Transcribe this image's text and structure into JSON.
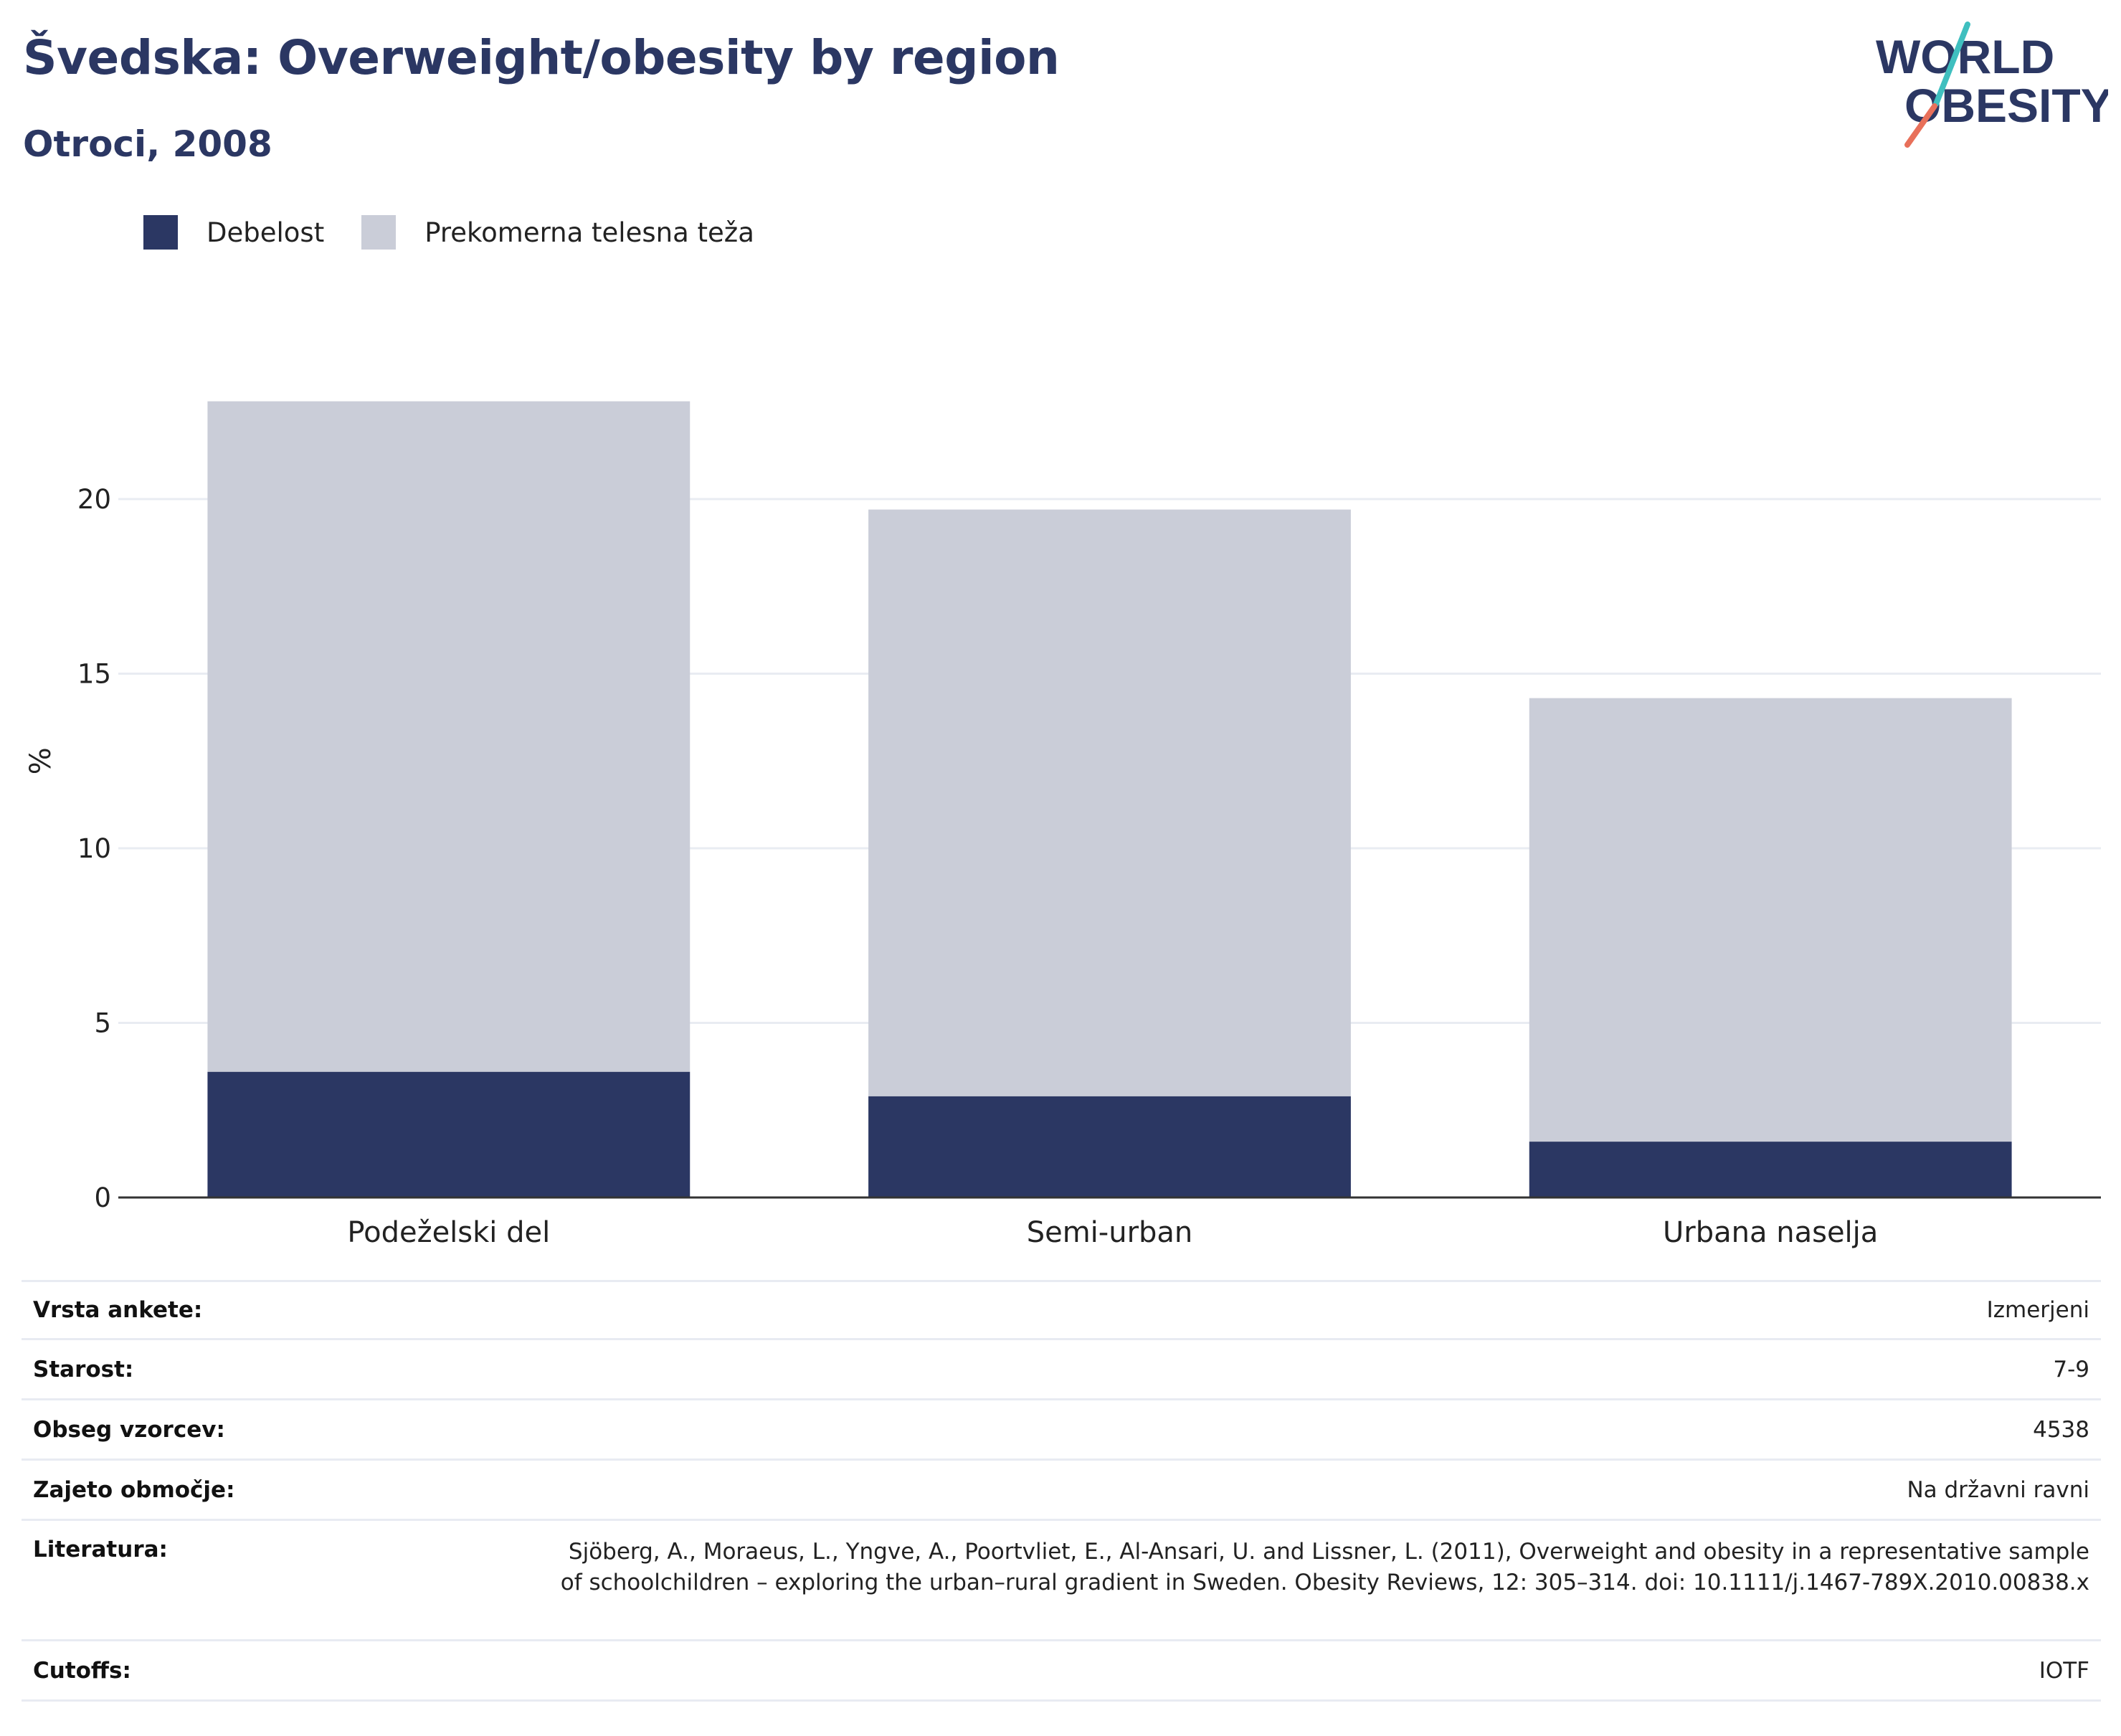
{
  "title": "Švedska: Overweight/obesity by region",
  "subtitle": "Otroci, 2008",
  "logo": {
    "line1": "WORLD",
    "line2": "OBESITY",
    "accent_colors": [
      "#3fbfbf",
      "#e8705a"
    ]
  },
  "colors": {
    "obesity": "#2b3763",
    "overweight": "#cacdd8",
    "grid": "#e9ecf2",
    "axis": "#333333",
    "title": "#2b3763"
  },
  "legend": [
    {
      "label": "Debelost",
      "color": "#2b3763"
    },
    {
      "label": "Prekomerna telesna teža",
      "color": "#cacdd8"
    }
  ],
  "chart_data": {
    "type": "bar",
    "stacked": true,
    "categories": [
      "Podeželski del",
      "Semi-urban",
      "Urbana naselja"
    ],
    "series": [
      {
        "name": "Debelost",
        "values": [
          3.6,
          2.9,
          1.6
        ]
      },
      {
        "name": "Prekomerna telesna teža",
        "values": [
          19.2,
          16.8,
          12.7
        ]
      }
    ],
    "totals": [
      22.8,
      19.7,
      14.3
    ],
    "ylabel": "%",
    "xlabel": "",
    "ylim": [
      0,
      25.5
    ],
    "yticks": [
      0,
      5,
      10,
      15,
      20
    ],
    "grid": true,
    "legend_position": "top-left"
  },
  "meta": [
    {
      "label": "Vrsta ankete:",
      "value": "Izmerjeni"
    },
    {
      "label": "Starost:",
      "value": "7-9"
    },
    {
      "label": "Obseg vzorcev:",
      "value": "4538"
    },
    {
      "label": "Zajeto območje:",
      "value": "Na državni ravni"
    },
    {
      "label": "Literatura:",
      "value": "Sjöberg, A., Moraeus, L., Yngve, A., Poortvliet, E., Al-Ansari, U. and Lissner, L. (2011), Overweight and obesity in a representative sample of schoolchildren – exploring the urban–rural gradient in Sweden. Obesity Reviews, 12: 305–314. doi: 10.1111/j.1467-789X.2010.00838.x"
    },
    {
      "label": "Cutoffs:",
      "value": "IOTF"
    }
  ]
}
